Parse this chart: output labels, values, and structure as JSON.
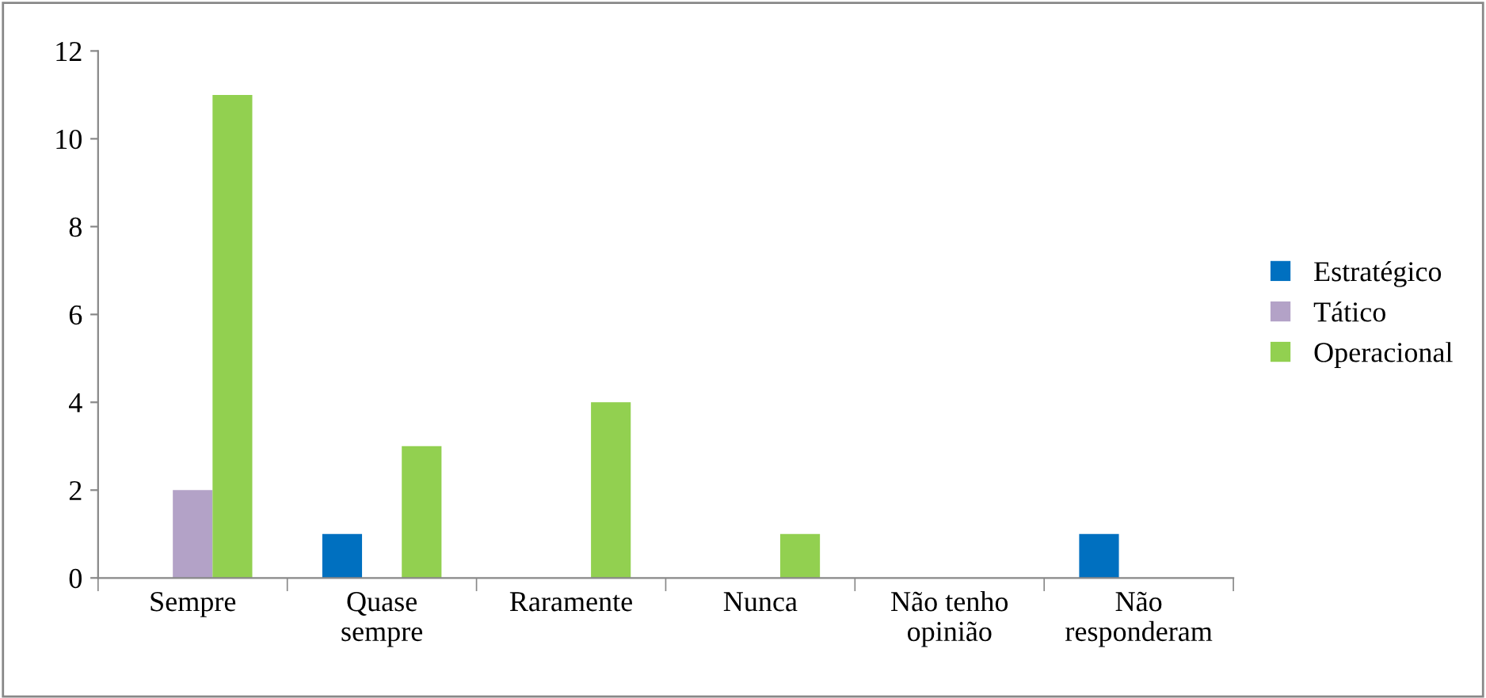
{
  "chart_data": {
    "type": "bar",
    "categories": [
      "Sempre",
      "Quase\nsempre",
      "Raramente",
      "Nunca",
      "Não tenho\nopinião",
      "Não\nresponderam"
    ],
    "series": [
      {
        "name": "Estratégico",
        "color": "#0070c0",
        "values": [
          0,
          1,
          0,
          0,
          0,
          1
        ]
      },
      {
        "name": "Tático",
        "color": "#b3a2c7",
        "values": [
          2,
          0,
          0,
          0,
          0,
          0
        ]
      },
      {
        "name": "Operacional",
        "color": "#92d050",
        "values": [
          11,
          3,
          4,
          1,
          0,
          0
        ]
      }
    ],
    "ylim": [
      0,
      12
    ],
    "yticks": [
      0,
      2,
      4,
      6,
      8,
      10,
      12
    ],
    "grid": false,
    "legend": "right"
  }
}
